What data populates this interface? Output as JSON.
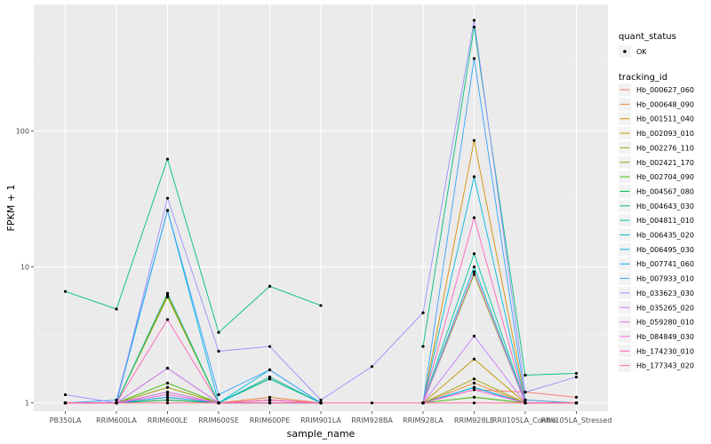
{
  "chart_data": {
    "type": "line",
    "xlabel": "sample_name",
    "ylabel": "FPKM + 1",
    "y_scale": "log10",
    "ylim": [
      0.87,
      850
    ],
    "y_ticks": [
      {
        "value": 1,
        "label": "1"
      },
      {
        "value": 10,
        "label": "10"
      },
      {
        "value": 100,
        "label": "100"
      }
    ],
    "grid": true,
    "legend_position": "right",
    "categories": [
      "PB350LA",
      "RRIM600LA",
      "RRIM600LE",
      "RRIM600SE",
      "RRIM600PE",
      "RRIM901LA",
      "RRIM928BA",
      "RRIM928LA",
      "RRIM928LE",
      "RRII105LA_Control",
      "RRII105LA_Stressed"
    ],
    "quant_status": {
      "title": "quant_status",
      "entries": [
        {
          "label": "OK"
        }
      ]
    },
    "tracking_title": "tracking_id",
    "series": [
      {
        "name": "Hb_000627_060",
        "color": "#F8766D",
        "values": [
          1.0,
          1.0,
          1.05,
          1.0,
          1.05,
          1.0,
          null,
          1.0,
          1.25,
          1.2,
          1.1
        ]
      },
      {
        "name": "Hb_000648_090",
        "color": "#EA8331",
        "values": [
          1.0,
          1.0,
          1.1,
          1.0,
          1.1,
          1.0,
          null,
          1.0,
          1.4,
          1.0,
          1.0
        ]
      },
      {
        "name": "Hb_001511_040",
        "color": "#D89000",
        "values": [
          1.0,
          1.0,
          6.2,
          1.0,
          1.55,
          1.0,
          null,
          1.0,
          85,
          1.05,
          1.0
        ]
      },
      {
        "name": "Hb_002093_010",
        "color": "#C09B00",
        "values": [
          1.0,
          1.0,
          1.2,
          1.0,
          1.05,
          1.0,
          null,
          1.0,
          2.1,
          1.0,
          1.0
        ]
      },
      {
        "name": "Hb_002276_110",
        "color": "#A3A500",
        "values": [
          1.0,
          1.0,
          1.3,
          1.0,
          1.05,
          1.0,
          null,
          1.0,
          1.5,
          1.0,
          1.0
        ]
      },
      {
        "name": "Hb_002421_170",
        "color": "#7CAE00",
        "values": [
          1.0,
          1.0,
          6.0,
          1.0,
          1.5,
          1.0,
          null,
          1.0,
          8.8,
          1.0,
          1.0
        ]
      },
      {
        "name": "Hb_002704_090",
        "color": "#39B600",
        "values": [
          1.0,
          1.0,
          1.4,
          1.0,
          1.05,
          1.0,
          null,
          1.0,
          1.1,
          1.0,
          1.0
        ]
      },
      {
        "name": "Hb_004567_080",
        "color": "#00BB4E",
        "values": [
          1.0,
          1.0,
          1.05,
          1.0,
          1.0,
          1.0,
          null,
          1.0,
          1.3,
          1.0,
          1.0
        ]
      },
      {
        "name": "Hb_004643_030",
        "color": "#00BF7D",
        "values": [
          6.6,
          4.9,
          62,
          3.3,
          7.2,
          5.2,
          null,
          2.6,
          580,
          1.6,
          1.65
        ]
      },
      {
        "name": "Hb_004811_010",
        "color": "#00C1A3",
        "values": [
          1.0,
          1.0,
          6.4,
          1.0,
          1.5,
          1.0,
          null,
          1.0,
          12.5,
          1.0,
          1.0
        ]
      },
      {
        "name": "Hb_006435_020",
        "color": "#00BFC4",
        "values": [
          1.0,
          1.0,
          1.8,
          1.0,
          1.55,
          1.0,
          null,
          1.0,
          10.0,
          1.0,
          1.0
        ]
      },
      {
        "name": "Hb_006495_030",
        "color": "#00BAE0",
        "values": [
          1.0,
          1.0,
          26,
          1.0,
          1.75,
          1.0,
          null,
          1.0,
          46,
          1.0,
          1.0
        ]
      },
      {
        "name": "Hb_007741_060",
        "color": "#00B0F6",
        "values": [
          1.0,
          1.0,
          1.1,
          1.0,
          1.0,
          1.0,
          null,
          1.0,
          1.3,
          1.0,
          1.0
        ]
      },
      {
        "name": "Hb_007933_010",
        "color": "#35A2FF",
        "values": [
          1.0,
          1.05,
          26,
          1.15,
          1.75,
          1.0,
          null,
          1.0,
          340,
          1.05,
          1.0
        ]
      },
      {
        "name": "Hb_033623_030",
        "color": "#9590FF",
        "values": [
          1.15,
          1.0,
          32,
          2.4,
          2.6,
          1.05,
          1.85,
          4.6,
          650,
          1.2,
          1.55
        ]
      },
      {
        "name": "Hb_035265_020",
        "color": "#C77CFF",
        "values": [
          1.0,
          1.0,
          1.2,
          1.0,
          1.05,
          1.0,
          null,
          1.0,
          3.1,
          1.0,
          1.0
        ]
      },
      {
        "name": "Hb_059280_010",
        "color": "#E76BF3",
        "values": [
          1.0,
          1.0,
          1.8,
          1.0,
          1.05,
          1.0,
          null,
          1.0,
          9.2,
          1.0,
          1.0
        ]
      },
      {
        "name": "Hb_084849_030",
        "color": "#FA62DB",
        "values": [
          1.0,
          1.0,
          1.15,
          1.0,
          1.0,
          1.0,
          null,
          1.0,
          1.25,
          1.0,
          1.0
        ]
      },
      {
        "name": "Hb_174230_010",
        "color": "#FF62BC",
        "values": [
          1.0,
          1.0,
          4.1,
          1.0,
          1.05,
          1.0,
          null,
          1.0,
          23,
          1.0,
          1.0
        ]
      },
      {
        "name": "Hb_177343_020",
        "color": "#FF6C91",
        "values": [
          1.0,
          1.0,
          1.0,
          1.0,
          1.0,
          1.0,
          1.0,
          1.0,
          1.0,
          1.0,
          1.0
        ]
      }
    ]
  }
}
